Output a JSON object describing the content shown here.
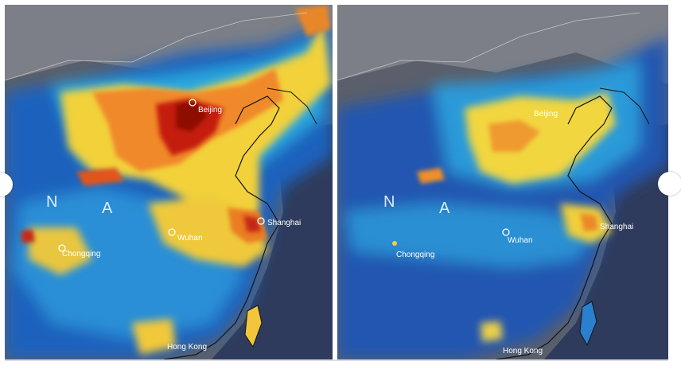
{
  "panels": [
    {
      "id": "before",
      "cities": {
        "beijing": "Beijing",
        "shanghai": "Shanghai",
        "wuhan": "Wuhan",
        "chongqing": "Chongqing",
        "hongkong": "Hong Kong"
      },
      "region_letters": [
        "N",
        "A"
      ]
    },
    {
      "id": "after",
      "cities": {
        "beijing": "Beijing",
        "shanghai": "Shanghai",
        "wuhan": "Wuhan",
        "chongqing": "Chongqing",
        "hongkong": "Hong Kong"
      },
      "region_letters": [
        "N",
        "A"
      ]
    }
  ],
  "colors": {
    "land": "#5b606c",
    "ocean": "#2f3a5a",
    "low": "#1f5fb8",
    "mid": "#2aa7df",
    "moderate": "#f5d93c",
    "high": "#f08a24",
    "very_high": "#c51d0e",
    "border": "#1a1a1a",
    "label": "#ffffff"
  }
}
